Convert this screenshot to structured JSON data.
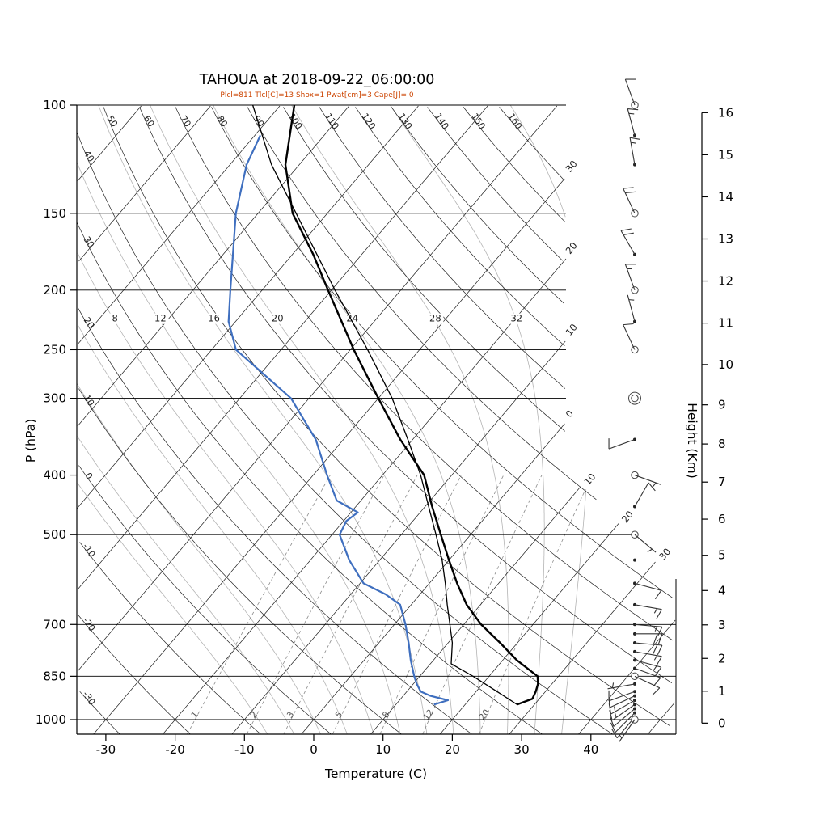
{
  "title": "TAHOUA at 2018-09-22_06:00:00",
  "params_line": "Plcl=811 Tlcl[C]=13 Shox=1 Pwat[cm]=3 Cape[J]= 0",
  "axes": {
    "x_label": "Temperature (C)",
    "x_ticks": [
      -30,
      -20,
      -10,
      0,
      10,
      20,
      30,
      40
    ],
    "y_left_label": "P (hPa)",
    "y_left_ticks": [
      100,
      150,
      200,
      250,
      300,
      400,
      500,
      700,
      850,
      1000
    ],
    "y_right_label": "Height (Km)",
    "y_right_ticks": [
      0,
      1,
      2,
      3,
      4,
      5,
      6,
      7,
      8,
      9,
      10,
      11,
      12,
      13,
      14,
      15,
      16
    ]
  },
  "chart_data": {
    "type": "skewt-log-p-sounding",
    "station": "TAHOUA",
    "valid_time": "2018-09-22_06:00:00",
    "temperature_profile": {
      "pressure_hPa": [
        945,
        925,
        900,
        875,
        850,
        800,
        750,
        700,
        650,
        600,
        550,
        500,
        450,
        400,
        350,
        300,
        250,
        200,
        175,
        150,
        125,
        100
      ],
      "temp_C": [
        27.5,
        29.0,
        28.6,
        28.0,
        27.0,
        22.0,
        17.5,
        12.5,
        8.0,
        4.0,
        0.0,
        -4.3,
        -9.0,
        -14.0,
        -21.8,
        -30.0,
        -39.5,
        -50.5,
        -57.0,
        -65.0,
        -72.0,
        -78.0
      ]
    },
    "dewpoint_profile": {
      "pressure_hPa": [
        945,
        930,
        915,
        900,
        875,
        850,
        800,
        750,
        700,
        650,
        625,
        600,
        550,
        500,
        475,
        460,
        440,
        400,
        350,
        300,
        250,
        225,
        200,
        150,
        125,
        112
      ],
      "temp_C": [
        15.5,
        17.0,
        14.0,
        12.0,
        10.5,
        9.2,
        6.7,
        4.3,
        1.6,
        -1.6,
        -5.0,
        -9.5,
        -14.4,
        -18.9,
        -19.6,
        -19.0,
        -23.5,
        -28.0,
        -34.0,
        -42.6,
        -56.5,
        -61.0,
        -64.6,
        -73.2,
        -77.6,
        -79.2
      ]
    },
    "parcel_profile": {
      "pressure_hPa": [
        945,
        900,
        850,
        811,
        750,
        700,
        650,
        600,
        550,
        500,
        450,
        400,
        350,
        300,
        250,
        200,
        150,
        125,
        100
      ],
      "temp_C": [
        27.5,
        23.0,
        17.7,
        13.0,
        10.6,
        8.0,
        5.2,
        2.3,
        -1.0,
        -5.0,
        -9.5,
        -14.5,
        -20.7,
        -28.0,
        -37.5,
        -49.5,
        -64.5,
        -74.0,
        -84.0
      ]
    },
    "winds": [
      {
        "p": 100,
        "dir_deg": 340,
        "spd_kt": 10,
        "marker": "circle"
      },
      {
        "p": 112,
        "dir_deg": 345,
        "spd_kt": 15,
        "marker": "dot"
      },
      {
        "p": 125,
        "dir_deg": 350,
        "spd_kt": 15,
        "marker": "dot"
      },
      {
        "p": 150,
        "dir_deg": 335,
        "spd_kt": 20,
        "marker": "circle"
      },
      {
        "p": 175,
        "dir_deg": 330,
        "spd_kt": 20,
        "marker": "dot"
      },
      {
        "p": 200,
        "dir_deg": 340,
        "spd_kt": 15,
        "marker": "circle"
      },
      {
        "p": 225,
        "dir_deg": 345,
        "spd_kt": 5,
        "marker": "dot"
      },
      {
        "p": 250,
        "dir_deg": 335,
        "spd_kt": 10,
        "marker": "circle"
      },
      {
        "p": 300,
        "dir_deg": 0,
        "spd_kt": 0,
        "marker": "calm"
      },
      {
        "p": 350,
        "dir_deg": 250,
        "spd_kt": 10,
        "marker": "dot"
      },
      {
        "p": 400,
        "dir_deg": 110,
        "spd_kt": 5,
        "marker": "circle"
      },
      {
        "p": 450,
        "dir_deg": 30,
        "spd_kt": 10,
        "marker": "dot"
      },
      {
        "p": 500,
        "dir_deg": 130,
        "spd_kt": 5,
        "marker": "circle"
      },
      {
        "p": 550,
        "dir_deg": 0,
        "spd_kt": 0,
        "marker": "dot"
      },
      {
        "p": 600,
        "dir_deg": 105,
        "spd_kt": 10,
        "marker": "dot"
      },
      {
        "p": 650,
        "dir_deg": 100,
        "spd_kt": 15,
        "marker": "dot"
      },
      {
        "p": 700,
        "dir_deg": 95,
        "spd_kt": 15,
        "marker": "dot"
      },
      {
        "p": 725,
        "dir_deg": 90,
        "spd_kt": 20,
        "marker": "dot"
      },
      {
        "p": 750,
        "dir_deg": 95,
        "spd_kt": 20,
        "marker": "dot"
      },
      {
        "p": 775,
        "dir_deg": 100,
        "spd_kt": 15,
        "marker": "dot"
      },
      {
        "p": 800,
        "dir_deg": 105,
        "spd_kt": 15,
        "marker": "dot"
      },
      {
        "p": 825,
        "dir_deg": 110,
        "spd_kt": 10,
        "marker": "dot"
      },
      {
        "p": 850,
        "dir_deg": 115,
        "spd_kt": 10,
        "marker": "circle"
      },
      {
        "p": 875,
        "dir_deg": 260,
        "spd_kt": 5,
        "marker": "dot"
      },
      {
        "p": 900,
        "dir_deg": 250,
        "spd_kt": 10,
        "marker": "dot"
      },
      {
        "p": 915,
        "dir_deg": 245,
        "spd_kt": 10,
        "marker": "dot"
      },
      {
        "p": 930,
        "dir_deg": 240,
        "spd_kt": 15,
        "marker": "dot"
      },
      {
        "p": 945,
        "dir_deg": 235,
        "spd_kt": 15,
        "marker": "dot"
      },
      {
        "p": 960,
        "dir_deg": 230,
        "spd_kt": 10,
        "marker": "dot"
      },
      {
        "p": 975,
        "dir_deg": 225,
        "spd_kt": 10,
        "marker": "dot"
      },
      {
        "p": 990,
        "dir_deg": 220,
        "spd_kt": 10,
        "marker": "dot"
      },
      {
        "p": 1000,
        "dir_deg": 215,
        "spd_kt": 5,
        "marker": "circle"
      }
    ],
    "grid": {
      "isotherms_C": [
        -120,
        -110,
        -100,
        -90,
        -80,
        -70,
        -60,
        -50,
        -40,
        -30,
        -20,
        -10,
        0,
        10,
        20,
        30,
        40,
        50
      ],
      "isotherm_edge_labels": [
        {
          "t": -30,
          "text": "30"
        },
        {
          "t": -20,
          "text": "20"
        },
        {
          "t": -10,
          "text": "10"
        },
        {
          "t": 0,
          "text": "0"
        },
        {
          "t": 10,
          "text": "10"
        },
        {
          "t": 20,
          "text": "20"
        },
        {
          "t": 30,
          "text": "30"
        }
      ],
      "dry_adiabats_C": [
        -30,
        -20,
        -10,
        0,
        10,
        20,
        30,
        40,
        50,
        60,
        70,
        80,
        90,
        100,
        110,
        120,
        130,
        140,
        150,
        160
      ],
      "dry_adiabat_top_labels": [
        50,
        60,
        70,
        80,
        90,
        100,
        110,
        120,
        130,
        140,
        150,
        160
      ],
      "dry_adiabat_left_labels": [
        40,
        30,
        20,
        10,
        0,
        -10,
        -20,
        -30
      ],
      "moist_adiabats_C": [
        -8,
        -4,
        0,
        4,
        8,
        12,
        16,
        20,
        24,
        28,
        32,
        36
      ],
      "moist_adiabat_labels": [
        8,
        12,
        16,
        20,
        24,
        28,
        32
      ],
      "moist_label_pressure": 225,
      "mixing_ratios_gkg": [
        1,
        2,
        3,
        5,
        8,
        12,
        20
      ]
    },
    "colors": {
      "temperature": "#000000",
      "dewpoint": "#3f6fbf",
      "parcel": "#000000",
      "isotherm": "#222222",
      "dry_adiabat": "#222222",
      "moist_adiabat": "#b4b4b4",
      "mixing_ratio": "#8a8a8a",
      "params_text": "#cc4400",
      "wind": "#333333"
    }
  }
}
